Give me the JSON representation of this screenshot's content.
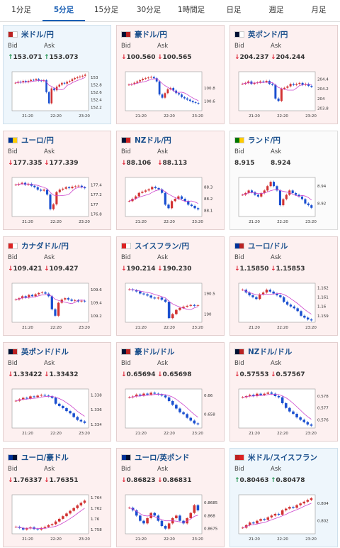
{
  "tabs": [
    "1分足",
    "5分足",
    "15分足",
    "30分足",
    "1時間足",
    "日足",
    "週足",
    "月足"
  ],
  "active_tab": 1,
  "labels": {
    "bid": "Bid",
    "ask": "Ask"
  },
  "x_ticks": [
    "21:20",
    "22:20",
    "23:20"
  ],
  "colors": {
    "up_arrow": "#1a8e4a",
    "down_arrow": "#d23333",
    "candle_up": "#d23333",
    "candle_down": "#1a4fd0",
    "ma": "#cc44cc"
  },
  "cards": [
    {
      "pair": "米ドル/円",
      "flag": "us-jp-flag-icon",
      "dir": "up",
      "bid": "153.071",
      "ask": "153.073",
      "bg": "up",
      "chart_data": {
        "type": "candlestick",
        "y_ticks": [
          "153",
          "152.8",
          "152.6",
          "152.4",
          "152.2"
        ],
        "ylim": [
          152.1,
          153.15
        ],
        "close": [
          152.85,
          152.88,
          152.86,
          152.9,
          152.87,
          152.9,
          152.93,
          152.92,
          152.95,
          152.91,
          152.9,
          152.92,
          152.6,
          152.3,
          152.7,
          152.65,
          152.75,
          152.8,
          152.85,
          152.83,
          152.88,
          152.9,
          152.95,
          152.98,
          153.0,
          153.02,
          153.04,
          153.07
        ]
      }
    },
    {
      "pair": "豪ドル/円",
      "flag": "au-jp-flag-icon",
      "dir": "down",
      "bid": "100.560",
      "ask": "100.565",
      "bg": "down",
      "chart_data": {
        "type": "candlestick",
        "y_ticks": [
          "100.8",
          "100.6"
        ],
        "ylim": [
          100.45,
          101.05
        ],
        "close": [
          100.85,
          100.86,
          100.88,
          100.9,
          100.92,
          100.94,
          100.95,
          100.96,
          100.97,
          100.95,
          100.9,
          100.7,
          100.65,
          100.72,
          100.78,
          100.8,
          100.76,
          100.72,
          100.7,
          100.66,
          100.64,
          100.62,
          100.6,
          100.58,
          100.57,
          100.56
        ]
      }
    },
    {
      "pair": "英ポンド/円",
      "flag": "gb-jp-flag-icon",
      "dir": "down",
      "bid": "204.237",
      "ask": "204.244",
      "bg": "down",
      "chart_data": {
        "type": "candlestick",
        "y_ticks": [
          "204.4",
          "204.2",
          "204",
          "203.8"
        ],
        "ylim": [
          203.75,
          204.55
        ],
        "close": [
          204.3,
          204.32,
          204.35,
          204.3,
          204.32,
          204.33,
          204.35,
          204.34,
          204.36,
          204.3,
          204.28,
          204.0,
          203.95,
          204.2,
          204.22,
          204.25,
          204.3,
          204.28,
          204.3,
          204.32,
          204.28,
          204.3,
          204.26,
          204.24
        ]
      }
    },
    {
      "pair": "ユーロ/円",
      "flag": "eu-jp-flag-icon",
      "dir": "down",
      "bid": "177.335",
      "ask": "177.339",
      "bg": "down",
      "chart_data": {
        "type": "candlestick",
        "y_ticks": [
          "177.4",
          "177.2",
          "177",
          "176.8"
        ],
        "ylim": [
          176.75,
          177.55
        ],
        "close": [
          177.4,
          177.42,
          177.44,
          177.4,
          177.42,
          177.38,
          177.35,
          177.3,
          177.28,
          177.3,
          177.2,
          176.9,
          177.0,
          177.25,
          177.3,
          177.32,
          177.35,
          177.33,
          177.36,
          177.37,
          177.38,
          177.35,
          177.33
        ]
      }
    },
    {
      "pair": "NZドル/円",
      "flag": "nz-jp-flag-icon",
      "dir": "down",
      "bid": "88.106",
      "ask": "88.113",
      "bg": "down",
      "chart_data": {
        "type": "candlestick",
        "y_ticks": [
          "88.3",
          "88.2",
          "88.1"
        ],
        "ylim": [
          88.05,
          88.38
        ],
        "close": [
          88.18,
          88.2,
          88.22,
          88.25,
          88.26,
          88.27,
          88.28,
          88.3,
          88.29,
          88.28,
          88.25,
          88.15,
          88.12,
          88.18,
          88.2,
          88.22,
          88.2,
          88.18,
          88.15,
          88.14,
          88.12,
          88.11
        ]
      }
    },
    {
      "pair": "ランド/円",
      "flag": "za-jp-flag-icon",
      "dir": "none",
      "bid": "8.915",
      "ask": "8.924",
      "bg": "neutral",
      "chart_data": {
        "type": "candlestick",
        "y_ticks": [
          "8.94",
          "8.92"
        ],
        "ylim": [
          8.905,
          8.95
        ],
        "close": [
          8.93,
          8.932,
          8.935,
          8.933,
          8.93,
          8.928,
          8.932,
          8.935,
          8.94,
          8.945,
          8.94,
          8.935,
          8.918,
          8.925,
          8.93,
          8.935,
          8.932,
          8.93,
          8.928,
          8.925,
          8.92,
          8.918,
          8.915
        ]
      }
    },
    {
      "pair": "カナダドル/円",
      "flag": "ca-jp-flag-icon",
      "dir": "down",
      "bid": "109.421",
      "ask": "109.427",
      "bg": "down",
      "chart_data": {
        "type": "candlestick",
        "y_ticks": [
          "109.6",
          "109.4",
          "109.2"
        ],
        "ylim": [
          109.1,
          109.7
        ],
        "close": [
          109.45,
          109.47,
          109.5,
          109.48,
          109.52,
          109.5,
          109.53,
          109.55,
          109.56,
          109.54,
          109.5,
          109.3,
          109.2,
          109.4,
          109.45,
          109.47,
          109.45,
          109.43,
          109.44,
          109.42,
          109.43,
          109.42
        ]
      }
    },
    {
      "pair": "スイスフラン/円",
      "flag": "ch-jp-flag-icon",
      "dir": "down",
      "bid": "190.214",
      "ask": "190.230",
      "bg": "down",
      "chart_data": {
        "type": "candlestick",
        "y_ticks": [
          "190.5",
          "190"
        ],
        "ylim": [
          189.8,
          190.75
        ],
        "close": [
          190.6,
          190.58,
          190.55,
          190.5,
          190.48,
          190.45,
          190.4,
          190.38,
          190.4,
          190.35,
          190.3,
          189.9,
          190.0,
          190.1,
          190.15,
          190.18,
          190.2,
          190.22,
          190.2,
          190.21
        ]
      }
    },
    {
      "pair": "ユーロ/ドル",
      "flag": "eu-us-flag-icon",
      "dir": "down",
      "bid": "1.15850",
      "ask": "1.15853",
      "bg": "down",
      "chart_data": {
        "type": "candlestick",
        "y_ticks": [
          "1.162",
          "1.161",
          "1.16",
          "1.159"
        ],
        "ylim": [
          1.1583,
          1.1625
        ],
        "close": [
          1.1618,
          1.1615,
          1.1612,
          1.161,
          1.1608,
          1.1613,
          1.1615,
          1.1618,
          1.1616,
          1.1614,
          1.1612,
          1.161,
          1.1605,
          1.1602,
          1.16,
          1.1598,
          1.1595,
          1.159,
          1.1588,
          1.1586,
          1.1585
        ]
      }
    },
    {
      "pair": "英ポンド/ドル",
      "flag": "gb-us-flag-icon",
      "dir": "down",
      "bid": "1.33422",
      "ask": "1.33432",
      "bg": "down",
      "chart_data": {
        "type": "candlestick",
        "y_ticks": [
          "1.338",
          "1.336",
          "1.334"
        ],
        "ylim": [
          1.3335,
          1.3388
        ],
        "close": [
          1.3372,
          1.3374,
          1.3376,
          1.3375,
          1.3378,
          1.3377,
          1.3379,
          1.338,
          1.3379,
          1.3378,
          1.3376,
          1.3368,
          1.3365,
          1.3362,
          1.3358,
          1.3355,
          1.335,
          1.3346,
          1.3344,
          1.3342
        ]
      }
    },
    {
      "pair": "豪ドル/ドル",
      "flag": "au-us-flag-icon",
      "dir": "down",
      "bid": "0.65694",
      "ask": "0.65698",
      "bg": "down",
      "chart_data": {
        "type": "candlestick",
        "y_ticks": [
          "0.66",
          "0.658"
        ],
        "ylim": [
          0.6565,
          0.6607
        ],
        "close": [
          0.6598,
          0.6599,
          0.6601,
          0.66,
          0.6602,
          0.6601,
          0.6603,
          0.6602,
          0.6601,
          0.66,
          0.6598,
          0.6594,
          0.659,
          0.6586,
          0.6582,
          0.658,
          0.6576,
          0.6573,
          0.657,
          0.6569
        ]
      }
    },
    {
      "pair": "NZドル/ドル",
      "flag": "nz-us-flag-icon",
      "dir": "down",
      "bid": "0.57553",
      "ask": "0.57567",
      "bg": "down",
      "chart_data": {
        "type": "candlestick",
        "y_ticks": [
          "0.578",
          "0.577",
          "0.576"
        ],
        "ylim": [
          0.5753,
          0.5786
        ],
        "close": [
          0.5779,
          0.578,
          0.5781,
          0.578,
          0.5782,
          0.5781,
          0.5782,
          0.5783,
          0.5782,
          0.578,
          0.5779,
          0.5774,
          0.577,
          0.5767,
          0.5765,
          0.5762,
          0.576,
          0.5758,
          0.5756,
          0.5755
        ]
      }
    },
    {
      "pair": "ユーロ/豪ドル",
      "flag": "eu-au-flag-icon",
      "dir": "down",
      "bid": "1.76337",
      "ask": "1.76351",
      "bg": "down",
      "chart_data": {
        "type": "candlestick",
        "y_ticks": [
          "1.764",
          "1.762",
          "1.76",
          "1.758"
        ],
        "ylim": [
          1.7572,
          1.7645
        ],
        "close": [
          1.7585,
          1.7583,
          1.758,
          1.7582,
          1.7584,
          1.7581,
          1.758,
          1.7583,
          1.7585,
          1.7588,
          1.759,
          1.7595,
          1.76,
          1.7605,
          1.761,
          1.7615,
          1.762,
          1.7625,
          1.763,
          1.7634
        ]
      }
    },
    {
      "pair": "ユーロ/英ポンド",
      "flag": "eu-gb-flag-icon",
      "dir": "down",
      "bid": "0.86823",
      "ask": "0.86831",
      "bg": "down",
      "chart_data": {
        "type": "candlestick",
        "y_ticks": [
          "0.8685",
          "0.868",
          "0.8675"
        ],
        "ylim": [
          0.8673,
          0.8688
        ],
        "close": [
          0.8683,
          0.8682,
          0.868,
          0.8678,
          0.8677,
          0.8679,
          0.8681,
          0.868,
          0.8678,
          0.8676,
          0.8675,
          0.8677,
          0.8679,
          0.868,
          0.8678,
          0.8677,
          0.8679,
          0.8681,
          0.8684,
          0.8682
        ]
      }
    },
    {
      "pair": "米ドル/スイスフラン",
      "flag": "us-ch-flag-icon",
      "dir": "up",
      "bid": "0.80463",
      "ask": "0.80478",
      "bg": "up",
      "chart_data": {
        "type": "candlestick",
        "y_ticks": [
          "0.804",
          "0.802"
        ],
        "ylim": [
          0.8005,
          0.805
        ],
        "close": [
          0.8012,
          0.8015,
          0.8018,
          0.8017,
          0.802,
          0.8022,
          0.8021,
          0.8024,
          0.8026,
          0.8028,
          0.8027,
          0.8032,
          0.8034,
          0.8036,
          0.8035,
          0.8038,
          0.804,
          0.8042,
          0.8044,
          0.8046
        ]
      }
    }
  ]
}
